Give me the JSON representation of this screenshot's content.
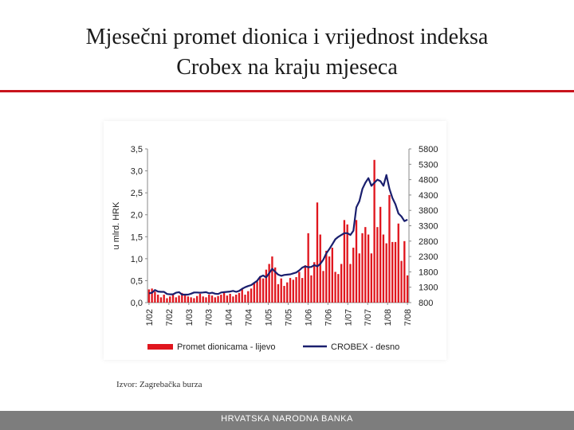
{
  "page": {
    "title_line1": "Mjesečni promet dionica i vrijednost indeksa",
    "title_line2": "Crobex na kraju mjeseca",
    "source": "Izvor: Zagrebačka burza",
    "footer": "HRVATSKA NARODNA BANKA",
    "accent_color": "#c8141c"
  },
  "chart_data": {
    "type": "bar+line",
    "ylabel_left": "u mlrd. HRK",
    "ylim_left": [
      0,
      3.5
    ],
    "yticks_left": [
      "0,0",
      "0,5",
      "1,0",
      "1,5",
      "2,0",
      "2,5",
      "3,0",
      "3,5"
    ],
    "ylim_right": [
      800,
      5800
    ],
    "yticks_right": [
      "800",
      "1300",
      "1800",
      "2300",
      "2800",
      "3300",
      "3800",
      "4300",
      "4800",
      "5300",
      "5800"
    ],
    "x_tick_labels": [
      "1/02",
      "7/02",
      "1/03",
      "7/03",
      "1/04",
      "7/04",
      "1/05",
      "7/05",
      "1/06",
      "7/06",
      "1/07",
      "7/07",
      "1/08",
      "7/08"
    ],
    "series": [
      {
        "name": "Promet dionicama - lijevo",
        "color": "#e0161e",
        "values": [
          0.3,
          0.32,
          0.25,
          0.18,
          0.12,
          0.18,
          0.1,
          0.14,
          0.2,
          0.12,
          0.16,
          0.22,
          0.2,
          0.14,
          0.12,
          0.1,
          0.15,
          0.2,
          0.14,
          0.12,
          0.18,
          0.16,
          0.12,
          0.15,
          0.18,
          0.22,
          0.16,
          0.2,
          0.14,
          0.18,
          0.22,
          0.3,
          0.18,
          0.26,
          0.32,
          0.44,
          0.48,
          0.6,
          0.55,
          0.75,
          0.88,
          1.05,
          0.8,
          0.42,
          0.55,
          0.38,
          0.46,
          0.56,
          0.52,
          0.58,
          0.7,
          0.56,
          0.85,
          1.58,
          0.62,
          0.92,
          2.28,
          1.55,
          0.72,
          1.18,
          1.05,
          1.25,
          0.7,
          0.65,
          0.88,
          1.88,
          1.78,
          0.88,
          1.25,
          1.88,
          1.12,
          1.58,
          1.72,
          1.55,
          1.12,
          3.25,
          1.72,
          2.18,
          1.55,
          1.35,
          2.45,
          1.38,
          1.38,
          1.8,
          0.95,
          1.4,
          0.62
        ]
      },
      {
        "name": "CROBEX - desno",
        "color": "#1a1f6e",
        "values": [
          1100,
          1120,
          1210,
          1160,
          1150,
          1150,
          1080,
          1070,
          1070,
          1120,
          1140,
          1060,
          1060,
          1060,
          1090,
          1130,
          1130,
          1120,
          1130,
          1140,
          1100,
          1120,
          1090,
          1080,
          1130,
          1140,
          1150,
          1160,
          1180,
          1150,
          1180,
          1250,
          1300,
          1340,
          1370,
          1440,
          1510,
          1640,
          1680,
          1620,
          1760,
          1900,
          1800,
          1710,
          1670,
          1700,
          1710,
          1720,
          1750,
          1780,
          1850,
          1940,
          1980,
          1950,
          1960,
          2020,
          1980,
          2060,
          2200,
          2400,
          2540,
          2700,
          2860,
          2940,
          3000,
          3060,
          3060,
          3000,
          3140,
          3900,
          4100,
          4500,
          4700,
          4850,
          4600,
          4700,
          4800,
          4750,
          4600,
          4950,
          4500,
          4200,
          4000,
          3700,
          3600,
          3450,
          3500
        ]
      }
    ]
  }
}
